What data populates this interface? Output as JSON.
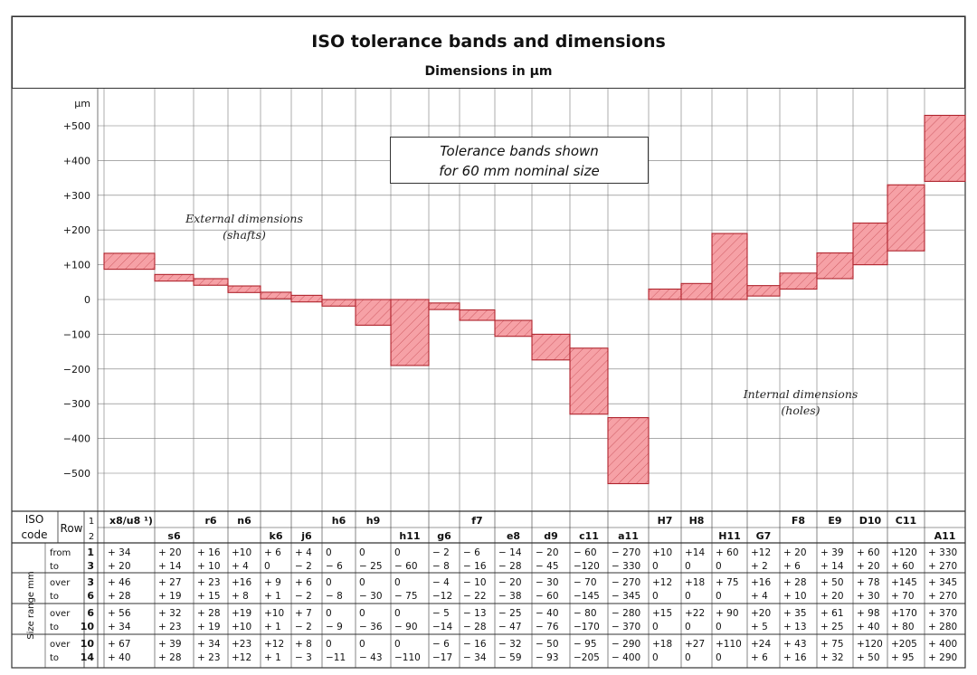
{
  "header": {
    "title": "ISO tolerance bands and dimensions",
    "subtitle": "Dimensions in µm"
  },
  "chart_data": {
    "type": "bar",
    "title": "ISO tolerance bands and dimensions",
    "subtitle": "Dimensions in µm",
    "ylabel": "µm",
    "ylim": [
      -550,
      550
    ],
    "yticks": [
      "+500",
      "+400",
      "+300",
      "+200",
      "+100",
      "0",
      "−100",
      "−200",
      "−300",
      "−400",
      "−500"
    ],
    "ytick_values": [
      500,
      400,
      300,
      200,
      100,
      0,
      -100,
      -200,
      -300,
      -400,
      -500
    ],
    "bar_color": "#f6a1a6",
    "bar_edge": "#b0252e",
    "categories": [
      "x8/u8",
      "s6",
      "r6",
      "n6",
      "k6",
      "j6",
      "h6",
      "h9",
      "h11",
      "g6",
      "f7",
      "e8",
      "d9",
      "c11",
      "a11",
      "H7",
      "H8",
      "H11",
      "G7",
      "F8",
      "E9",
      "D10",
      "C11",
      "A11"
    ],
    "bands": [
      {
        "code": "x8/u8",
        "lower": 87,
        "upper": 133
      },
      {
        "code": "s6",
        "lower": 53,
        "upper": 72
      },
      {
        "code": "r6",
        "lower": 41,
        "upper": 60
      },
      {
        "code": "n6",
        "lower": 20,
        "upper": 39
      },
      {
        "code": "k6",
        "lower": 2,
        "upper": 21
      },
      {
        "code": "j6",
        "lower": -7,
        "upper": 12
      },
      {
        "code": "h6",
        "lower": -19,
        "upper": 0
      },
      {
        "code": "h9",
        "lower": -74,
        "upper": 0
      },
      {
        "code": "h11",
        "lower": -190,
        "upper": 0
      },
      {
        "code": "g6",
        "lower": -29,
        "upper": -10
      },
      {
        "code": "f7",
        "lower": -60,
        "upper": -30
      },
      {
        "code": "e8",
        "lower": -106,
        "upper": -60
      },
      {
        "code": "d9",
        "lower": -174,
        "upper": -100
      },
      {
        "code": "c11",
        "lower": -330,
        "upper": -140
      },
      {
        "code": "a11",
        "lower": -530,
        "upper": -340
      },
      {
        "code": "H7",
        "lower": 0,
        "upper": 30
      },
      {
        "code": "H8",
        "lower": 0,
        "upper": 46
      },
      {
        "code": "H11",
        "lower": 0,
        "upper": 190
      },
      {
        "code": "G7",
        "lower": 10,
        "upper": 40
      },
      {
        "code": "F8",
        "lower": 30,
        "upper": 76
      },
      {
        "code": "E9",
        "lower": 60,
        "upper": 134
      },
      {
        "code": "D10",
        "lower": 100,
        "upper": 220
      },
      {
        "code": "C11",
        "lower": 140,
        "upper": 330
      },
      {
        "code": "A11",
        "lower": 340,
        "upper": 530
      }
    ],
    "annotations": {
      "shafts": "External dimensions\n(shafts)",
      "holes": "Internal dimensions\n(holes)",
      "box": "Tolerance bands shown\nfor 60 mm nominal size"
    }
  },
  "table": {
    "iso_label": "ISO",
    "code_label": "code",
    "row_label": "Row",
    "row1": "1",
    "row2": "2",
    "size_range_label": "Size range mm",
    "codes_row1": [
      {
        "col": 0,
        "text": "x8/u8 ¹)"
      },
      {
        "col": 2,
        "text": "r6"
      },
      {
        "col": 3,
        "text": "n6"
      },
      {
        "col": 6,
        "text": "h6"
      },
      {
        "col": 7,
        "text": "h9"
      },
      {
        "col": 10,
        "text": "f7"
      },
      {
        "col": 15,
        "text": "H7"
      },
      {
        "col": 16,
        "text": "H8"
      },
      {
        "col": 19,
        "text": "F8"
      },
      {
        "col": 20,
        "text": "E9"
      },
      {
        "col": 21,
        "text": "D10"
      },
      {
        "col": 22,
        "text": "C11"
      }
    ],
    "codes_row2": [
      {
        "col": 1,
        "text": "s6"
      },
      {
        "col": 4,
        "text": "k6"
      },
      {
        "col": 5,
        "text": "j6"
      },
      {
        "col": 8,
        "text": "h11"
      },
      {
        "col": 9,
        "text": "g6"
      },
      {
        "col": 11,
        "text": "e8"
      },
      {
        "col": 12,
        "text": "d9"
      },
      {
        "col": 13,
        "text": "c11"
      },
      {
        "col": 14,
        "text": "a11"
      },
      {
        "col": 17,
        "text": "H11"
      },
      {
        "col": 18,
        "text": "G7"
      },
      {
        "col": 23,
        "text": "A11"
      }
    ],
    "ranges": [
      {
        "w1": "from",
        "w2": "to",
        "n1": "1",
        "n2": "3",
        "v1": [
          "+ 34",
          "+ 20",
          "+ 16",
          "+10",
          "+ 6",
          "+ 4",
          "0",
          "0",
          "0",
          "− 2",
          "− 6",
          "− 14",
          "− 20",
          "− 60",
          "− 270",
          "+10",
          "+14",
          "+ 60",
          "+12",
          "+ 20",
          "+ 39",
          "+ 60",
          "+120",
          "+ 330"
        ],
        "v2": [
          "+ 20",
          "+ 14",
          "+ 10",
          "+ 4",
          "0",
          "− 2",
          "− 6",
          "− 25",
          "− 60",
          "− 8",
          "− 16",
          "− 28",
          "− 45",
          "−120",
          "− 330",
          "0",
          "0",
          "0",
          "+ 2",
          "+ 6",
          "+ 14",
          "+ 20",
          "+ 60",
          "+ 270"
        ]
      },
      {
        "w1": "over",
        "w2": "to",
        "n1": "3",
        "n2": "6",
        "v1": [
          "+ 46",
          "+ 27",
          "+ 23",
          "+16",
          "+ 9",
          "+ 6",
          "0",
          "0",
          "0",
          "− 4",
          "− 10",
          "− 20",
          "− 30",
          "− 70",
          "− 270",
          "+12",
          "+18",
          "+ 75",
          "+16",
          "+ 28",
          "+ 50",
          "+ 78",
          "+145",
          "+ 345"
        ],
        "v2": [
          "+ 28",
          "+ 19",
          "+ 15",
          "+ 8",
          "+ 1",
          "− 2",
          "− 8",
          "− 30",
          "− 75",
          "−12",
          "− 22",
          "− 38",
          "− 60",
          "−145",
          "− 345",
          "0",
          "0",
          "0",
          "+ 4",
          "+ 10",
          "+ 20",
          "+ 30",
          "+ 70",
          "+ 270"
        ]
      },
      {
        "w1": "over",
        "w2": "to",
        "n1": "6",
        "n2": "10",
        "v1": [
          "+ 56",
          "+ 32",
          "+ 28",
          "+19",
          "+10",
          "+ 7",
          "0",
          "0",
          "0",
          "− 5",
          "− 13",
          "− 25",
          "− 40",
          "− 80",
          "− 280",
          "+15",
          "+22",
          "+ 90",
          "+20",
          "+ 35",
          "+ 61",
          "+ 98",
          "+170",
          "+ 370"
        ],
        "v2": [
          "+ 34",
          "+ 23",
          "+ 19",
          "+10",
          "+ 1",
          "− 2",
          "− 9",
          "− 36",
          "− 90",
          "−14",
          "− 28",
          "− 47",
          "− 76",
          "−170",
          "− 370",
          "0",
          "0",
          "0",
          "+ 5",
          "+ 13",
          "+ 25",
          "+ 40",
          "+ 80",
          "+ 280"
        ]
      },
      {
        "w1": "over",
        "w2": "to",
        "n1": "10",
        "n2": "14",
        "v1": [
          "+ 67",
          "+ 39",
          "+ 34",
          "+23",
          "+12",
          "+ 8",
          "0",
          "0",
          "0",
          "− 6",
          "− 16",
          "− 32",
          "− 50",
          "− 95",
          "− 290",
          "+18",
          "+27",
          "+110",
          "+24",
          "+ 43",
          "+ 75",
          "+120",
          "+205",
          "+ 400"
        ],
        "v2": [
          "+ 40",
          "+ 28",
          "+ 23",
          "+12",
          "+ 1",
          "− 3",
          "−11",
          "− 43",
          "−110",
          "−17",
          "− 34",
          "− 59",
          "− 93",
          "−205",
          "− 400",
          "0",
          "0",
          "0",
          "+ 6",
          "+ 16",
          "+ 32",
          "+ 50",
          "+ 95",
          "+ 290"
        ]
      }
    ]
  }
}
